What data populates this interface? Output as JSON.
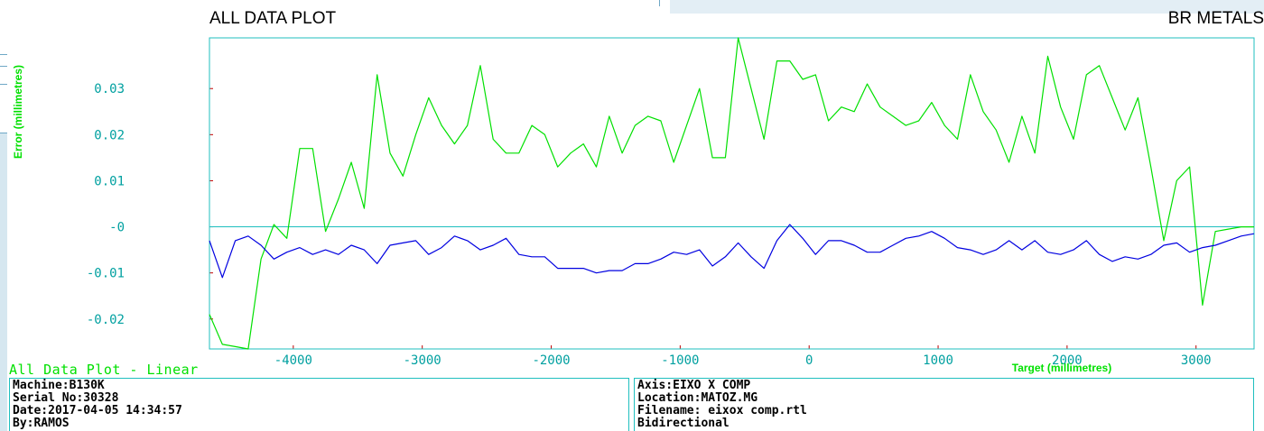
{
  "header": {
    "title": "ALL DATA PLOT",
    "company": "BR METALS"
  },
  "subtitle": "All Data Plot - Linear",
  "info_left": {
    "machine": "Machine:B130K",
    "serial": "Serial No:30328",
    "date": "Date:2017-04-05 14:34:57",
    "by": "By:RAMOS"
  },
  "info_right": {
    "axis": "Axis:EIXO X COMP",
    "location": "Location:MATOZ.MG",
    "filename": "Filename: eixox comp.rtl",
    "direction": "Bidirectional"
  },
  "colors": {
    "frame": "#1fbfbf",
    "series_forward": "#00e000",
    "series_reverse": "#0000e0",
    "ticks": "#00a0a0"
  },
  "chart_data": {
    "type": "line",
    "xlabel": "Target (millimetres)",
    "ylabel": "Error (millimetres)",
    "xlim": [
      -4650,
      3450
    ],
    "ylim": [
      -0.0265,
      0.041
    ],
    "x_ticks": [
      -4000,
      -3000,
      -2000,
      -1000,
      0,
      1000,
      2000,
      3000
    ],
    "x_tick_labels": [
      "-4000",
      "-3000",
      "-2000",
      "-1000",
      "0",
      "1000",
      "2000",
      "3000"
    ],
    "y_ticks": [
      0.03,
      0.02,
      0.01,
      0,
      -0.01,
      -0.02
    ],
    "y_tick_labels": [
      "0.03",
      "0.02",
      "0.01",
      "-0",
      "-0.01",
      "-0.02"
    ],
    "zero_line": true,
    "x": [
      -4650,
      -4550,
      -4450,
      -4350,
      -4250,
      -4150,
      -4050,
      -3950,
      -3850,
      -3750,
      -3650,
      -3550,
      -3450,
      -3350,
      -3250,
      -3150,
      -3050,
      -2950,
      -2850,
      -2750,
      -2650,
      -2550,
      -2450,
      -2350,
      -2250,
      -2150,
      -2050,
      -1950,
      -1850,
      -1750,
      -1650,
      -1550,
      -1450,
      -1350,
      -1250,
      -1150,
      -1050,
      -950,
      -850,
      -750,
      -650,
      -550,
      -450,
      -350,
      -250,
      -150,
      -50,
      50,
      150,
      250,
      350,
      450,
      550,
      650,
      750,
      850,
      950,
      1050,
      1150,
      1250,
      1350,
      1450,
      1550,
      1650,
      1750,
      1850,
      1950,
      2050,
      2150,
      2250,
      2350,
      2450,
      2550,
      2650,
      2750,
      2850,
      2950,
      3050,
      3150,
      3250,
      3350,
      3450
    ],
    "series": [
      {
        "values": [
          -0.019,
          -0.0255,
          -0.026,
          -0.0265,
          -0.007,
          0.0005,
          -0.0025,
          0.017,
          0.017,
          -0.001,
          0.006,
          0.014,
          0.004,
          0.033,
          0.016,
          0.011,
          0.02,
          0.028,
          0.022,
          0.018,
          0.022,
          0.035,
          0.019,
          0.016,
          0.016,
          0.022,
          0.02,
          0.013,
          0.016,
          0.018,
          0.013,
          0.024,
          0.016,
          0.022,
          0.024,
          0.023,
          0.014,
          0.022,
          0.03,
          0.015,
          0.015,
          0.041,
          0.03,
          0.019,
          0.036,
          0.036,
          0.032,
          0.033,
          0.023,
          0.026,
          0.025,
          0.031,
          0.026,
          0.024,
          0.022,
          0.023,
          0.027,
          0.022,
          0.019,
          0.033,
          0.025,
          0.021,
          0.014,
          0.024,
          0.016,
          0.037,
          0.026,
          0.019,
          0.033,
          0.035,
          0.028,
          0.021,
          0.028,
          0.013,
          -0.003,
          0.01,
          0.013,
          -0.017,
          -0.001,
          -0.0005,
          0.0,
          0.0
        ]
      },
      {
        "values": [
          -0.003,
          -0.011,
          -0.003,
          -0.002,
          -0.004,
          -0.007,
          -0.0055,
          -0.0045,
          -0.006,
          -0.005,
          -0.006,
          -0.004,
          -0.005,
          -0.008,
          -0.004,
          -0.0035,
          -0.003,
          -0.006,
          -0.0045,
          -0.002,
          -0.003,
          -0.005,
          -0.004,
          -0.0025,
          -0.006,
          -0.0065,
          -0.0065,
          -0.009,
          -0.009,
          -0.009,
          -0.01,
          -0.0095,
          -0.0095,
          -0.008,
          -0.008,
          -0.007,
          -0.0055,
          -0.006,
          -0.005,
          -0.0085,
          -0.0065,
          -0.0035,
          -0.0065,
          -0.009,
          -0.003,
          0.0005,
          -0.0025,
          -0.006,
          -0.003,
          -0.003,
          -0.004,
          -0.0055,
          -0.0055,
          -0.004,
          -0.0025,
          -0.002,
          -0.001,
          -0.0025,
          -0.0045,
          -0.005,
          -0.006,
          -0.005,
          -0.003,
          -0.005,
          -0.003,
          -0.0055,
          -0.006,
          -0.005,
          -0.003,
          -0.006,
          -0.0075,
          -0.0065,
          -0.007,
          -0.006,
          -0.004,
          -0.0035,
          -0.0055,
          -0.0045,
          -0.004,
          -0.003,
          -0.002,
          -0.0015
        ]
      }
    ]
  }
}
